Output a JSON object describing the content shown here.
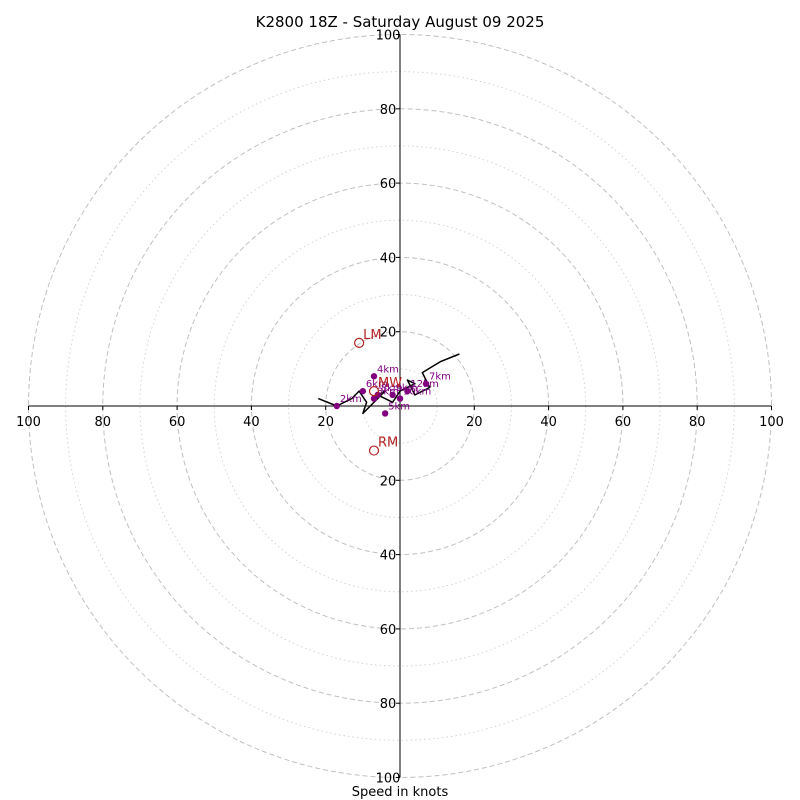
{
  "chart_data": {
    "type": "scatter",
    "subtype": "hodograph",
    "title": "K2800 18Z - Saturday August 09 2025",
    "xlabel": "Speed in knots",
    "axis_range": [
      -100,
      100
    ],
    "major_rings": [
      20,
      40,
      60,
      80,
      100
    ],
    "minor_rings": [
      10,
      30,
      50,
      70,
      90
    ],
    "x_tick_labels": [
      "100",
      "80",
      "60",
      "40",
      "20",
      "20",
      "40",
      "60",
      "80",
      "100"
    ],
    "y_tick_labels": [
      "100",
      "80",
      "60",
      "40",
      "20",
      "20",
      "40",
      "60",
      "80",
      "100"
    ],
    "grid": true,
    "colors": {
      "hodograph_line": "#000000",
      "height_points": "#800080",
      "storm_motion": "#b22222",
      "grid": "#c0c0c0"
    },
    "hodograph_trace": {
      "u": [
        16,
        11,
        6,
        8,
        4,
        2,
        4,
        0,
        -2,
        -4,
        -6,
        -4,
        -8,
        -10,
        -9,
        -11,
        -13,
        -17,
        -22
      ],
      "v": [
        14,
        12,
        9,
        5,
        3,
        7,
        6,
        4,
        1,
        2,
        3,
        4,
        0,
        -2,
        1,
        4,
        2,
        0,
        2
      ]
    },
    "height_points": [
      {
        "label": "2km",
        "u": -17,
        "v": 0
      },
      {
        "label": "4km",
        "u": -7,
        "v": 8
      },
      {
        "label": "6km",
        "u": -10,
        "v": 4
      },
      {
        "label": "8km",
        "u": -6,
        "v": 3
      },
      {
        "label": "3km",
        "u": -7,
        "v": 2
      },
      {
        "label": "5km",
        "u": -4,
        "v": -2
      },
      {
        "label": "9km",
        "u": -2,
        "v": 3
      },
      {
        "label": "10km",
        "u": 0,
        "v": 2
      },
      {
        "label": "12km",
        "u": 2,
        "v": 4
      },
      {
        "label": "7km",
        "u": 7,
        "v": 6
      }
    ],
    "storm_motion": [
      {
        "label": "LM",
        "u": -11,
        "v": 17
      },
      {
        "label": "RM",
        "u": -7,
        "v": -12
      },
      {
        "label": "MW",
        "u": -7,
        "v": 4
      }
    ]
  }
}
